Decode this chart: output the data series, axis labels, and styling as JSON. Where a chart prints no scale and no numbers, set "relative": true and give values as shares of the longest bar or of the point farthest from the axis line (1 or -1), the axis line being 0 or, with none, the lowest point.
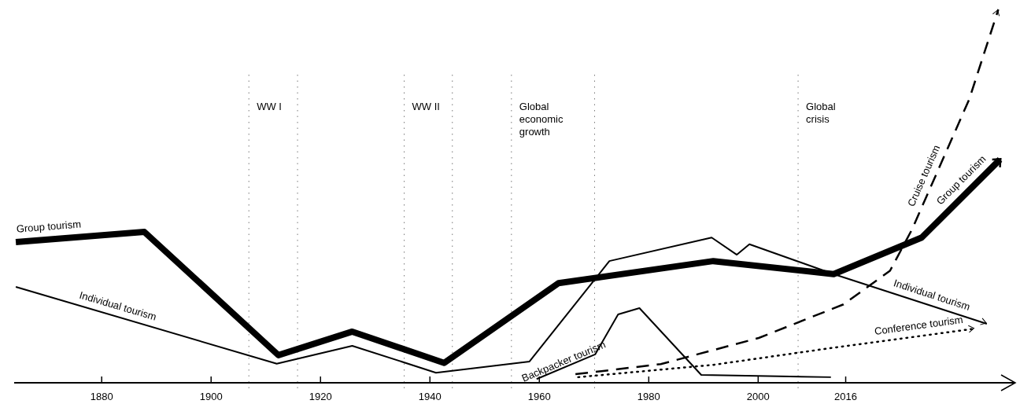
{
  "chart_data": {
    "type": "line",
    "relative": true,
    "xlim": [
      1864,
      2047
    ],
    "xticks": [
      1880,
      1900,
      1920,
      1940,
      1960,
      1980,
      2000,
      2016
    ],
    "series": [
      {
        "name": "Group tourism",
        "color": "#000000",
        "line_style": "solid",
        "x": [
          1864.3,
          1887.8,
          1912.3,
          1925.8,
          1942.6,
          1963.5,
          1991.8,
          2013.8,
          2029.9,
          2044.2
        ],
        "values": [
          0.377,
          0.404,
          0.074,
          0.137,
          0.053,
          0.267,
          0.326,
          0.291,
          0.389,
          0.598
        ]
      },
      {
        "name": "Individual tourism",
        "color": "#000000",
        "line_style": "solid",
        "x": [
          1864.3,
          1912,
          1925.8,
          1941.1,
          1958.2,
          1972.8,
          1991.5,
          1996.1,
          1998.4,
          2013.8,
          2041.8
        ],
        "values": [
          0.257,
          0.051,
          0.099,
          0.027,
          0.057,
          0.326,
          0.389,
          0.343,
          0.371,
          0.291,
          0.158
        ]
      },
      {
        "name": "Backpacker tourism",
        "color": "#000000",
        "line_style": "solid",
        "x": [
          1959.5,
          1970.2,
          1974.4,
          1978.3,
          1989.6,
          2013.3
        ],
        "values": [
          0.01,
          0.076,
          0.183,
          0.2,
          0.021,
          0.015
        ]
      },
      {
        "name": "Cruise tourism",
        "color": "#000000",
        "line_style": "dashed",
        "x": [
          1966.6,
          1982.2,
          2000.1,
          2015.6,
          2024.1,
          2028.1,
          2038.6,
          2043.9
        ],
        "values": [
          0.023,
          0.05,
          0.12,
          0.21,
          0.3,
          0.41,
          0.76,
          1
        ]
      },
      {
        "name": "Conference tourism",
        "color": "#000000",
        "line_style": "dotted",
        "x": [
          1967.1,
          1991.8,
          2013.3,
          2039.6
        ],
        "values": [
          0.015,
          0.048,
          0.093,
          0.145
        ]
      }
    ],
    "ref_lines": [
      {
        "axis": "x",
        "value": 1906.9,
        "label": "WW I",
        "line_style": "dotted"
      },
      {
        "axis": "x",
        "value": 1915.8,
        "label": null,
        "line_style": "dotted"
      },
      {
        "axis": "x",
        "value": 1935.3,
        "label": "WW II",
        "line_style": "dotted"
      },
      {
        "axis": "x",
        "value": 1944.1,
        "label": null,
        "line_style": "dotted"
      },
      {
        "axis": "x",
        "value": 1954.9,
        "label": "Global economic growth",
        "line_style": "dotted"
      },
      {
        "axis": "x",
        "value": 1970.1,
        "label": null,
        "line_style": "dotted"
      },
      {
        "axis": "x",
        "value": 2007.3,
        "label": "Global crisis",
        "line_style": "dotted"
      }
    ]
  }
}
